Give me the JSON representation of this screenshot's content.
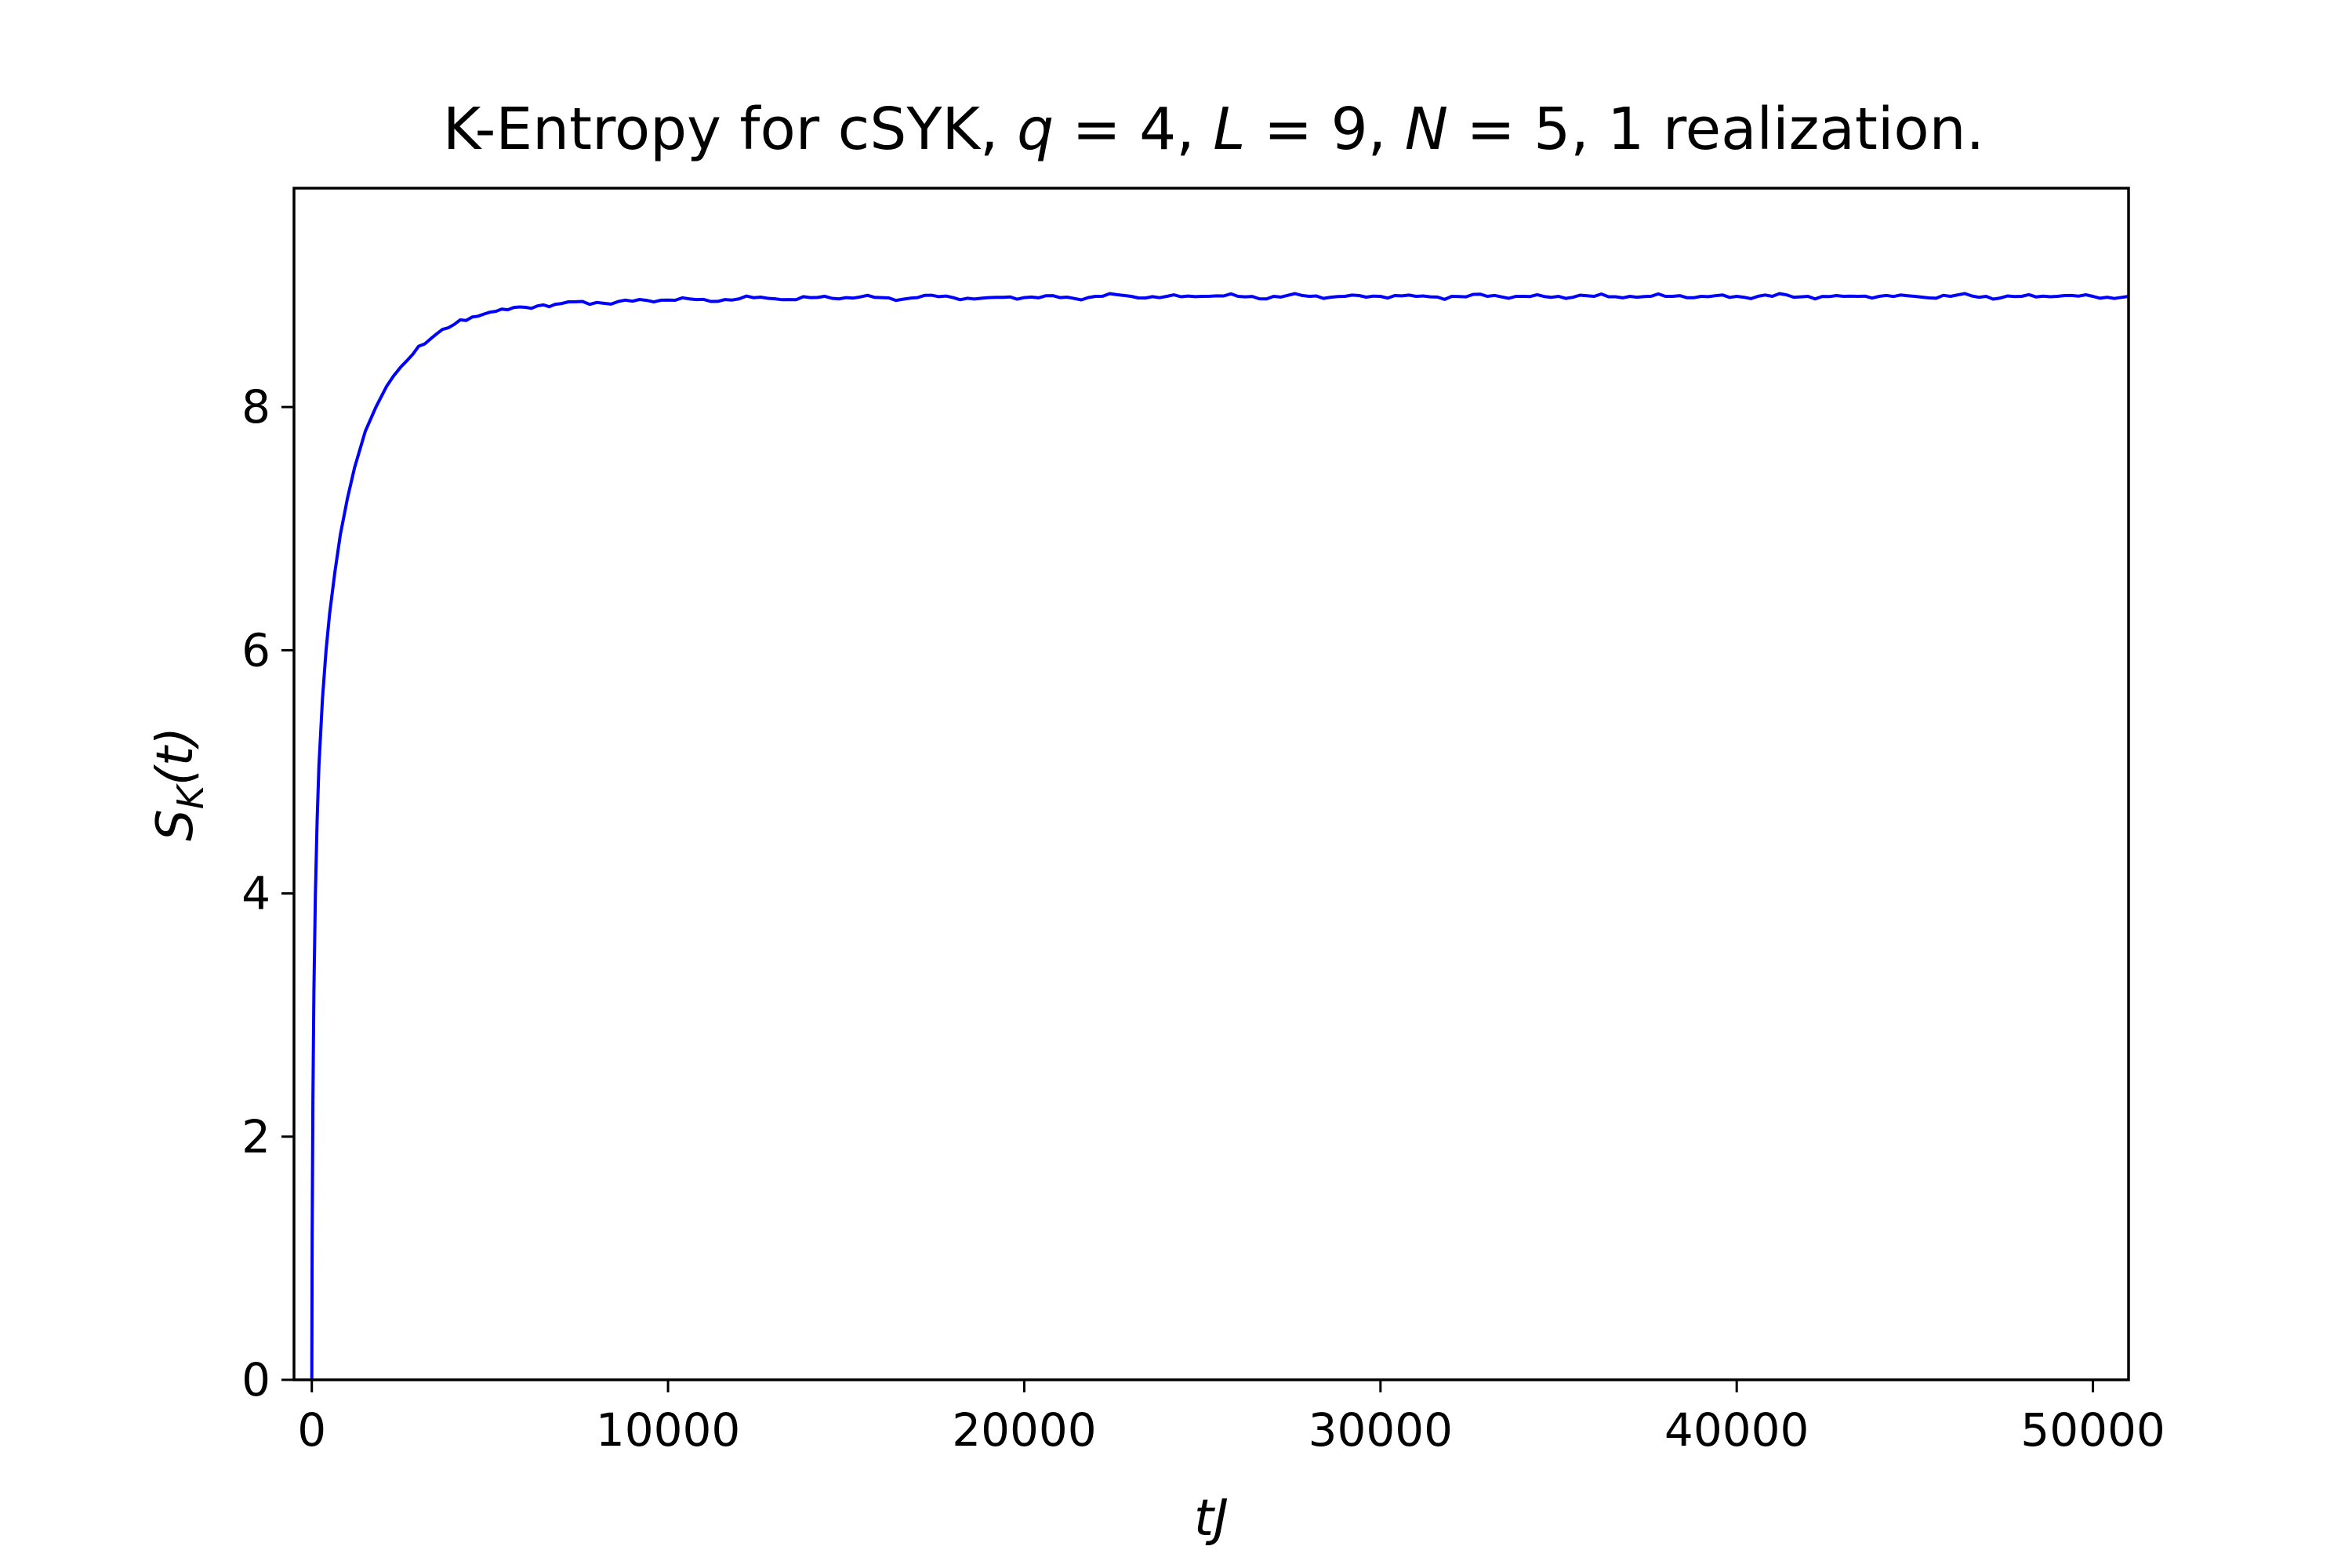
{
  "chart_data": {
    "type": "line",
    "title_parts": [
      {
        "text": "K-Entropy for cSYK, ",
        "italic": false
      },
      {
        "text": "q",
        "italic": true
      },
      {
        "text": " = 4, ",
        "italic": false
      },
      {
        "text": "L",
        "italic": true
      },
      {
        "text": " = 9, ",
        "italic": false
      },
      {
        "text": "N",
        "italic": true
      },
      {
        "text": " = 5, 1 realization.",
        "italic": false
      }
    ],
    "xlabel": "tJ",
    "ylabel": {
      "base": "S",
      "sub": "K",
      "arg": "(t)"
    },
    "xlim": [
      -500,
      51000
    ],
    "ylim": [
      0,
      9.8
    ],
    "xticks": [
      0,
      10000,
      20000,
      30000,
      40000,
      50000
    ],
    "yticks": [
      0,
      2,
      4,
      6,
      8
    ],
    "grid": false,
    "series": [
      {
        "color": "#0000ff",
        "x": [
          0,
          10,
          30,
          60,
          100,
          150,
          200,
          300,
          400,
          500,
          650,
          800,
          1000,
          1200,
          1500,
          1800,
          2100,
          2500,
          3000,
          3500,
          4000,
          4500,
          5000,
          5500,
          6000,
          6500,
          7000,
          8000,
          9000,
          10000,
          11000,
          12000,
          13000,
          14000,
          15000,
          16000,
          17000,
          18000,
          19000,
          20000,
          21000,
          22000,
          23000,
          24000,
          25000,
          26000,
          27000,
          28000,
          29000,
          30000,
          31000,
          32000,
          33000,
          34000,
          35000,
          36000,
          37000,
          38000,
          39000,
          40000,
          41000,
          42000,
          43000,
          44000,
          45000,
          46000,
          47000,
          48000,
          49000,
          50000,
          51000
        ],
        "values": [
          0,
          1.2,
          2.3,
          3.2,
          4.0,
          4.6,
          5.05,
          5.6,
          6.0,
          6.3,
          6.65,
          6.95,
          7.25,
          7.5,
          7.8,
          8.0,
          8.17,
          8.33,
          8.5,
          8.6,
          8.68,
          8.74,
          8.78,
          8.8,
          8.82,
          8.84,
          8.85,
          8.86,
          8.87,
          8.88,
          8.885,
          8.89,
          8.89,
          8.9,
          8.9,
          8.9,
          8.9,
          8.9,
          8.9,
          8.9,
          8.9,
          8.91,
          8.91,
          8.91,
          8.91,
          8.91,
          8.91,
          8.91,
          8.91,
          8.91,
          8.91,
          8.91,
          8.91,
          8.91,
          8.91,
          8.91,
          8.91,
          8.91,
          8.91,
          8.91,
          8.91,
          8.91,
          8.91,
          8.91,
          8.91,
          8.91,
          8.91,
          8.91,
          8.91,
          8.91,
          8.91
        ]
      }
    ]
  }
}
